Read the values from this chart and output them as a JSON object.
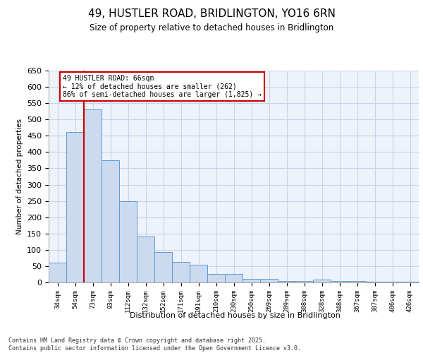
{
  "title": "49, HUSTLER ROAD, BRIDLINGTON, YO16 6RN",
  "subtitle": "Size of property relative to detached houses in Bridlington",
  "xlabel": "Distribution of detached houses by size in Bridlington",
  "ylabel": "Number of detached properties",
  "categories": [
    "34sqm",
    "54sqm",
    "73sqm",
    "93sqm",
    "112sqm",
    "132sqm",
    "152sqm",
    "171sqm",
    "191sqm",
    "210sqm",
    "230sqm",
    "250sqm",
    "269sqm",
    "289sqm",
    "308sqm",
    "328sqm",
    "348sqm",
    "367sqm",
    "387sqm",
    "406sqm",
    "426sqm"
  ],
  "values": [
    60,
    462,
    530,
    375,
    250,
    140,
    93,
    63,
    55,
    25,
    25,
    10,
    10,
    5,
    5,
    8,
    4,
    5,
    3,
    3,
    2
  ],
  "bar_color": "#ccdaf0",
  "bar_edge_color": "#5b9bd5",
  "grid_color": "#c8d4e8",
  "red_line_x": 1.5,
  "annotation_text": "49 HUSTLER ROAD: 66sqm\n← 12% of detached houses are smaller (262)\n86% of semi-detached houses are larger (1,825) →",
  "annotation_box_color": "#ffffff",
  "annotation_box_edge": "#cc0000",
  "footer": "Contains HM Land Registry data © Crown copyright and database right 2025.\nContains public sector information licensed under the Open Government Licence v3.0.",
  "ylim": [
    0,
    650
  ],
  "yticks": [
    0,
    50,
    100,
    150,
    200,
    250,
    300,
    350,
    400,
    450,
    500,
    550,
    600,
    650
  ],
  "background_color": "#eef2fa"
}
